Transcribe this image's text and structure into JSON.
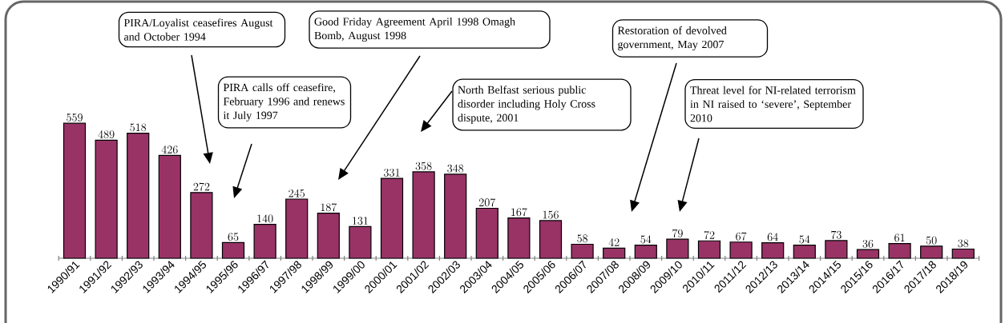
{
  "chart_data": {
    "type": "bar",
    "categories": [
      "1990/91",
      "1991/92",
      "1992/93",
      "1993/94",
      "1994/95",
      "1995/96",
      "1996/97",
      "1997/98",
      "1998/99",
      "1999/00",
      "2000/01",
      "2001/02",
      "2002/03",
      "2003/04",
      "2004/05",
      "2005/06",
      "2006/07",
      "2007/08",
      "2008/09",
      "2009/10",
      "2010/11",
      "2011/12",
      "2012/13",
      "2013/14",
      "2014/15",
      "2015/16",
      "2016/17",
      "2017/18",
      "2018/19"
    ],
    "values": [
      559,
      489,
      518,
      426,
      272,
      65,
      140,
      245,
      187,
      131,
      331,
      358,
      348,
      207,
      167,
      156,
      58,
      42,
      54,
      79,
      72,
      67,
      64,
      54,
      73,
      36,
      61,
      50,
      38
    ],
    "color": "#993366",
    "data_labels": true,
    "annotations": [
      "PIRA/Loyalist ceasefires August and October 1994",
      "PIRA calls off ceasefire, February 1996 and renews it July 1997",
      "Good Friday Agreement April 1998 Omagh Bomb, August 1998",
      "North Belfast serious public disorder including Holy Cross dispute, 2001",
      "Restoration of devolved government, May 2007",
      "Threat level for NI-related terrorism in NI raised to ‘severe’, September 2010"
    ]
  }
}
